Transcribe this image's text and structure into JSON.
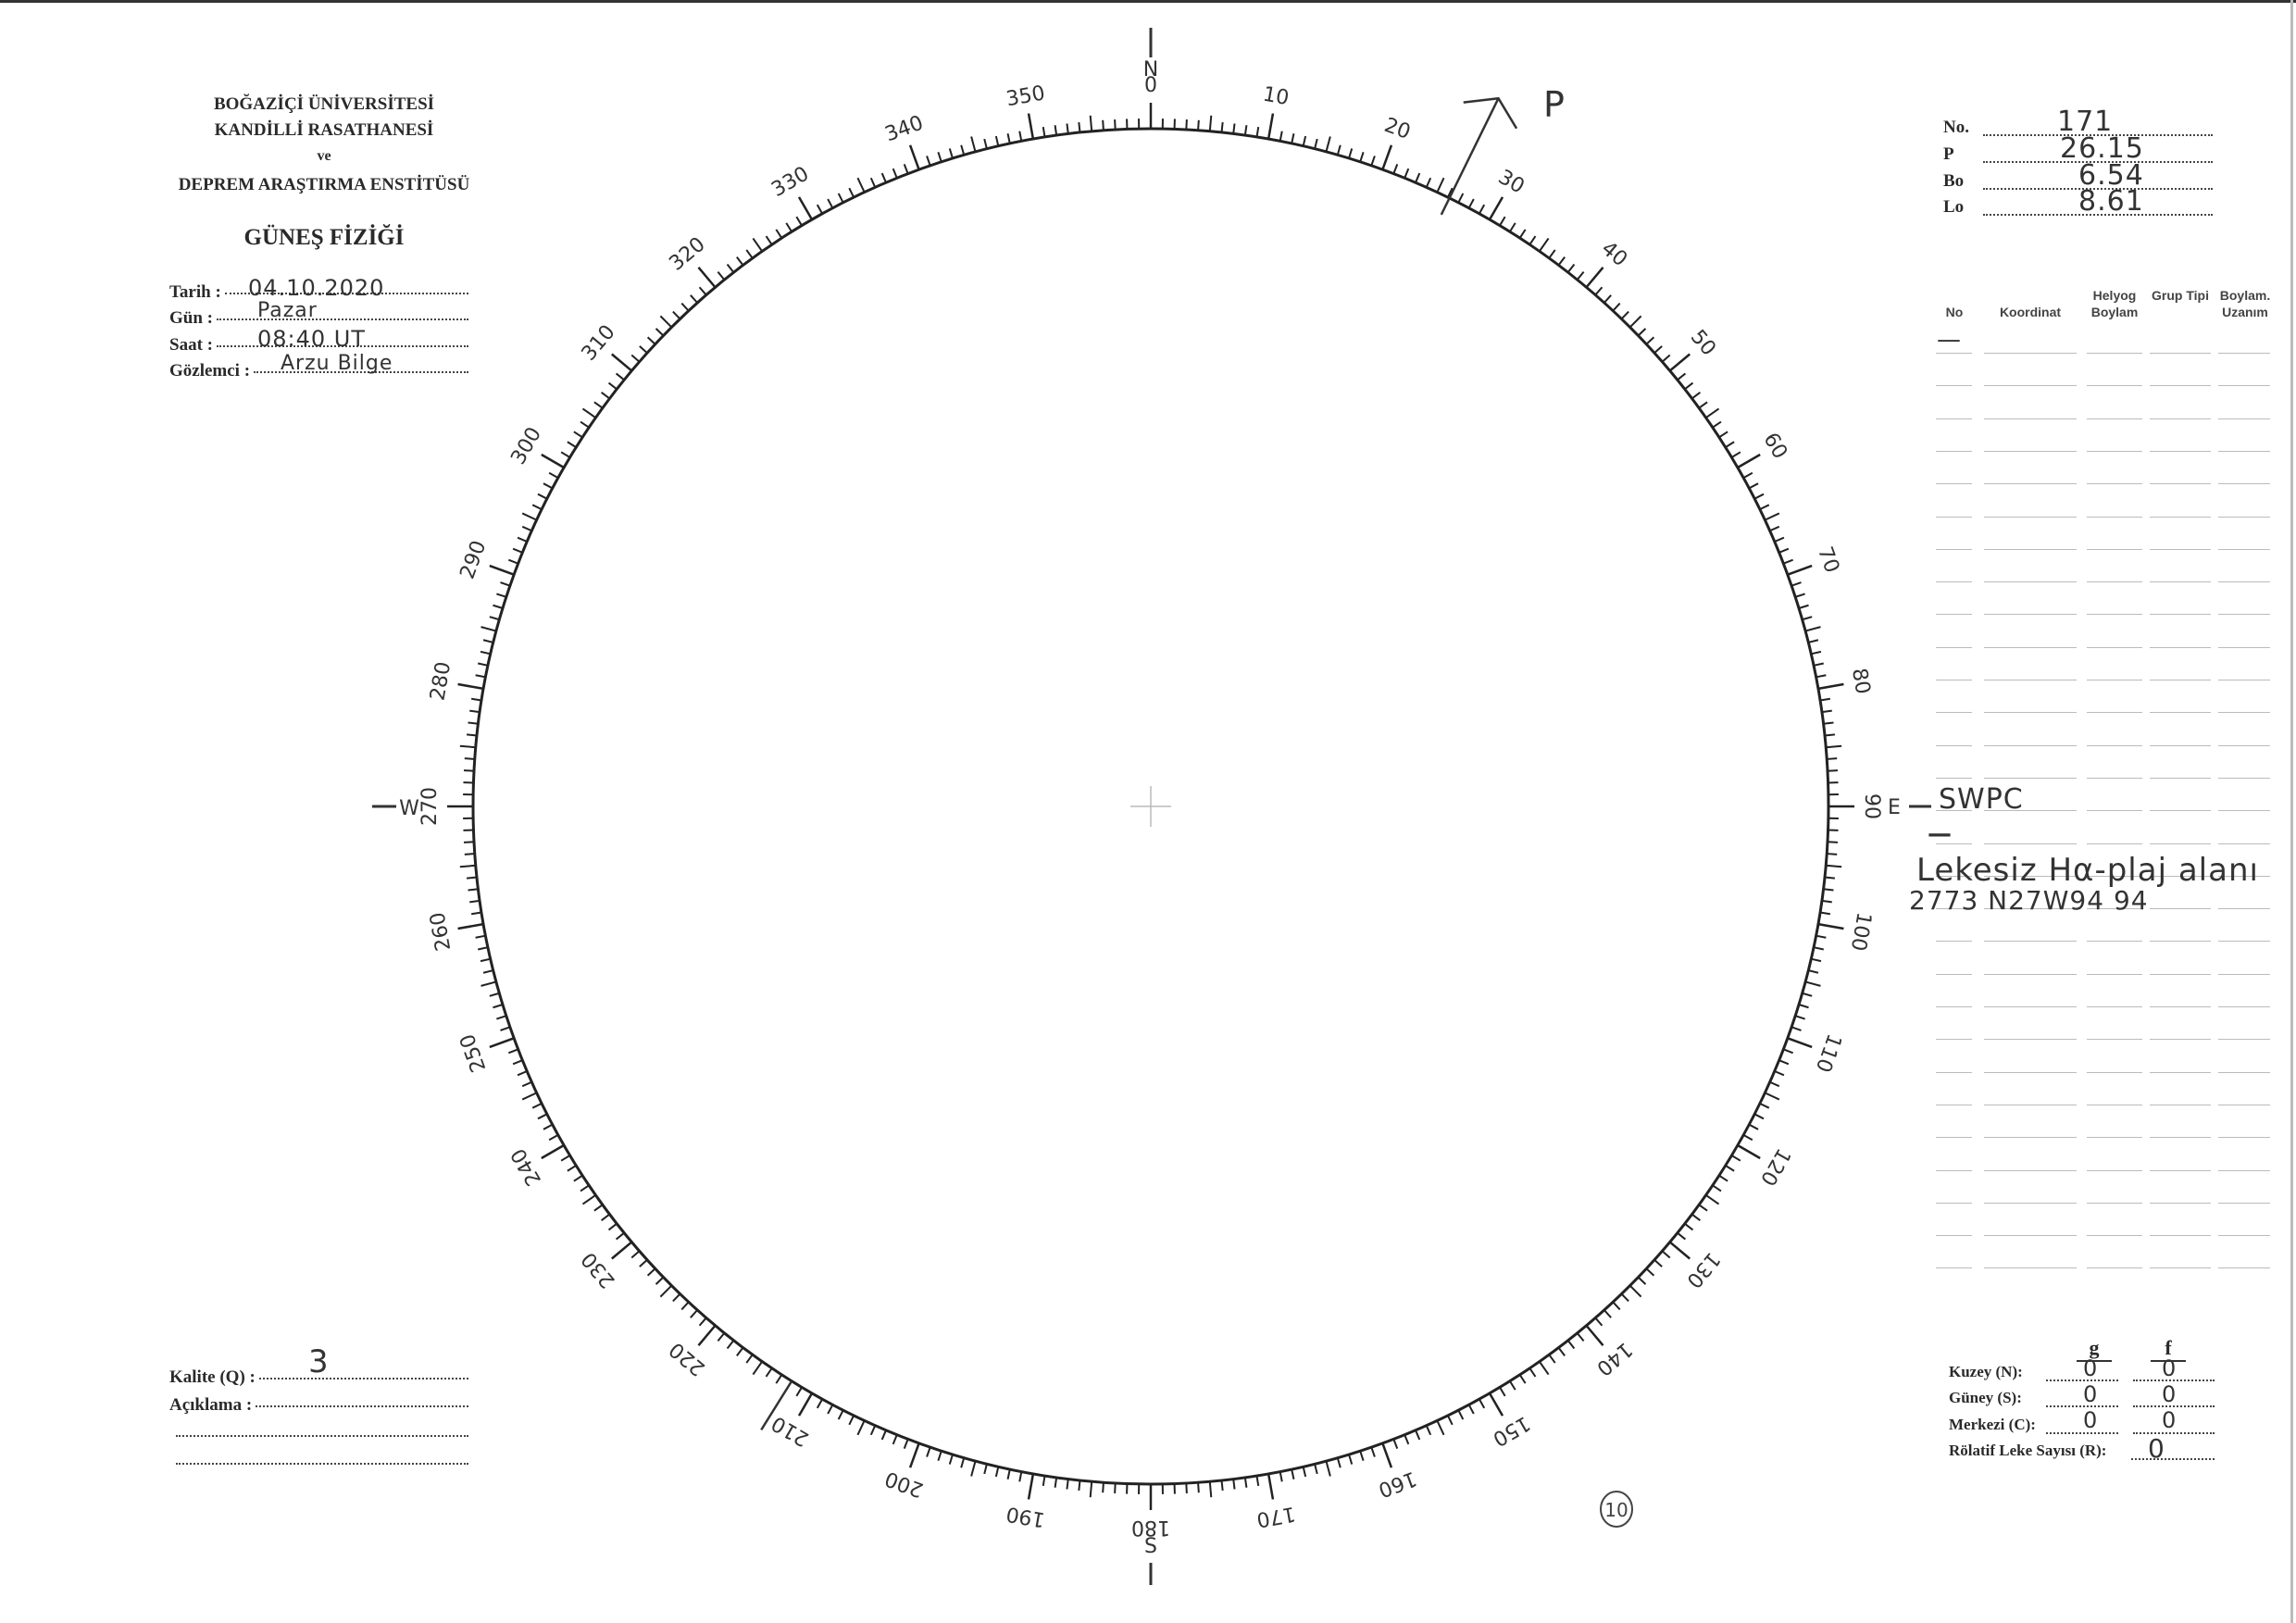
{
  "header": {
    "line1": "BOĞAZİÇİ ÜNİVERSİTESİ",
    "line2": "KANDİLLİ RASATHANESİ",
    "line3": "ve",
    "line4": "DEPREM ARAŞTIRMA ENSTİTÜSÜ",
    "title": "GÜNEŞ FİZİĞİ"
  },
  "observation": {
    "date_label": "Tarih :",
    "date_value": "04.10.2020",
    "day_label": "Gün :",
    "day_value": "Pazar",
    "time_label": "Saat :",
    "time_value": "08:40 UT",
    "observer_label": "Gözlemci :",
    "observer_value": "Arzu Bilge"
  },
  "quality": {
    "quality_label": "Kalite (Q) :",
    "quality_value": "3",
    "note_label": "Açıklama :"
  },
  "params": {
    "no_label": "No.",
    "no_value": "171",
    "p_label": "P",
    "p_value": "26.15",
    "bo_label": "Bo",
    "bo_value": "6.54",
    "lo_label": "Lo",
    "lo_value": "8.61"
  },
  "table": {
    "headers": [
      "No",
      "Koordinat",
      "Helyog Boylam",
      "Grup Tipi",
      "Boylam. Uzanım"
    ],
    "entries": {
      "first_dash": "—",
      "swpc": "SWPC",
      "dash2": "—",
      "note": "Lekesiz Hα-plaj alanı",
      "region": "2773 N27W94 94"
    }
  },
  "counts": {
    "g_label": "g",
    "f_label": "f",
    "north_label": "Kuzey (N):",
    "north_g": "0",
    "north_f": "0",
    "south_label": "Güney (S):",
    "south_g": "0",
    "south_f": "0",
    "center_label": "Merkezi (C):",
    "center_g": "0",
    "center_f": "0",
    "r_label": "Rölatif Leke Sayısı (R):",
    "r_value": "0"
  },
  "dial": {
    "labels": [
      "0",
      "10",
      "20",
      "30",
      "40",
      "50",
      "60",
      "70",
      "80",
      "90",
      "100",
      "110",
      "120",
      "130",
      "140",
      "150",
      "160",
      "170",
      "180",
      "190",
      "200",
      "210",
      "220",
      "230",
      "240",
      "250",
      "260",
      "270",
      "280",
      "290",
      "300",
      "310",
      "320",
      "330",
      "340",
      "350"
    ],
    "north": "N",
    "east": "E",
    "south": "S",
    "west": "W",
    "p_marker": "P",
    "p_angle_deg": 26.15,
    "extra_mark_deg": 212,
    "page_number": "10"
  }
}
